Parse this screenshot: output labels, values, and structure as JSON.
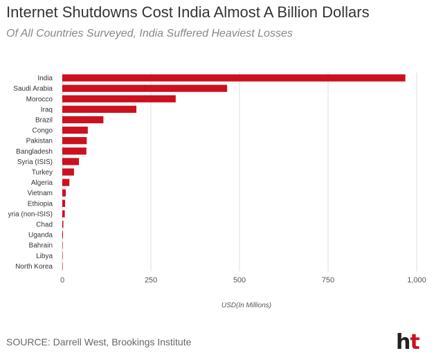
{
  "header": {
    "title": "Internet Shutdowns Cost India Almost A Billion Dollars",
    "subtitle": "Of All Countries Surveyed, India Suffered Heaviest Losses"
  },
  "footer": {
    "source": "SOURCE: Darrell West, Brookings Institute",
    "logo_h": "h",
    "logo_t": "t"
  },
  "colors": {
    "bar": "#cc1020",
    "grid": "#dddddd",
    "axis_text": "#555555"
  },
  "chart_data": {
    "type": "bar",
    "orientation": "horizontal",
    "categories": [
      "India",
      "Saudi Arabia",
      "Morocco",
      "Iraq",
      "Brazil",
      "Congo",
      "Pakistan",
      "Bangladesh",
      "Syria (ISIS)",
      "Turkey",
      "Algeria",
      "Vietnam",
      "Ethiopia",
      "Syria (non-ISIS)",
      "Chad",
      "Uganda",
      "Bahrain",
      "Libya",
      "North Korea"
    ],
    "category_labels": [
      "India",
      "Saudi Arabia",
      "Morocco",
      "Iraq",
      "Brazil",
      "Congo",
      "Pakistan",
      "Bangladesh",
      "Syria (ISIS)",
      "Turkey",
      "Algeria",
      "Vietnam",
      "Ethiopia",
      "yria (non-ISIS)",
      "Chad",
      "Uganda",
      "Bahrain",
      "Libya",
      "North Korea"
    ],
    "values": [
      968,
      465,
      320,
      209,
      116,
      72,
      69,
      68,
      47,
      33,
      20,
      10,
      8,
      7,
      3,
      2,
      1,
      0.5,
      0.3
    ],
    "xlim": [
      0,
      1000
    ],
    "xticks": [
      0,
      250,
      500,
      750,
      1000
    ],
    "xtick_labels": [
      "0",
      "250",
      "500",
      "750",
      "1,000"
    ],
    "xlabel": "USD(In Millions)",
    "ylabel": "",
    "grid": true,
    "legend": false
  }
}
